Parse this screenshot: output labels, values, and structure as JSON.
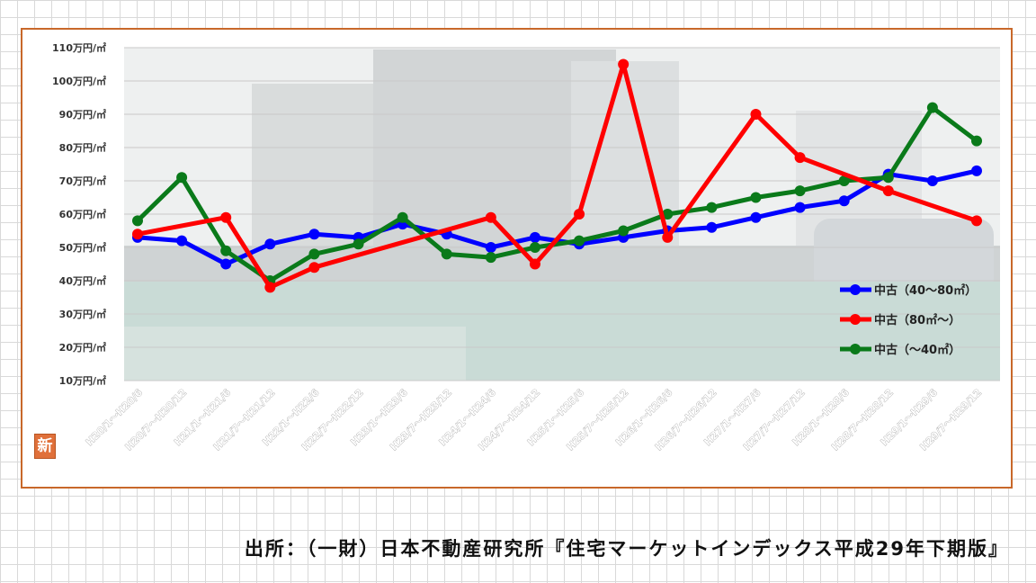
{
  "chart_data": {
    "type": "line",
    "categories": [
      "H20/1～H20/6",
      "H20/7～H20/12",
      "H21/1～H21/6",
      "H21/7～H21/12",
      "H22/1～H22/6",
      "H22/7～H22/12",
      "H23/1～H23/6",
      "H23/7～H23/12",
      "H24/1～H24/6",
      "H24/7～H24/12",
      "H25/1～H25/6",
      "H25/7～H25/12",
      "H26/1～H26/6",
      "H26/7～H26/12",
      "H27/1～H27/6",
      "H27/7～H27/12",
      "H28/1～H28/6",
      "H28/7～H28/12",
      "H29/1～H29/6",
      "H29/7～H29/12"
    ],
    "y_ticks": [
      "110万円/㎡",
      "100万円/㎡",
      "90万円/㎡",
      "80万円/㎡",
      "70万円/㎡",
      "60万円/㎡",
      "50万円/㎡",
      "40万円/㎡",
      "30万円/㎡",
      "20万円/㎡",
      "10万円/㎡"
    ],
    "ylim": [
      10,
      110
    ],
    "grid": true,
    "legend_position": "right",
    "series": [
      {
        "name": "中古（40～80㎡）",
        "color": "#0000ff",
        "values": [
          53,
          52,
          45,
          51,
          54,
          53,
          57,
          54,
          50,
          53,
          51,
          53,
          55,
          56,
          59,
          62,
          64,
          72,
          70,
          73
        ]
      },
      {
        "name": "中古（80㎡～）",
        "color": "#ff0000",
        "values": [
          54,
          null,
          59,
          38,
          44,
          null,
          null,
          null,
          59,
          45,
          60,
          105,
          53,
          null,
          90,
          77,
          null,
          67,
          null,
          58
        ]
      },
      {
        "name": "中古（～40㎡）",
        "color": "#0a7a1a",
        "values": [
          58,
          71,
          49,
          40,
          48,
          51,
          59,
          48,
          47,
          50,
          52,
          55,
          60,
          62,
          65,
          67,
          70,
          71,
          92,
          82
        ]
      }
    ]
  },
  "badge": "新",
  "source": "出所：（一財）日本不動産研究所『住宅マーケットインデックス平成29年下期版』"
}
